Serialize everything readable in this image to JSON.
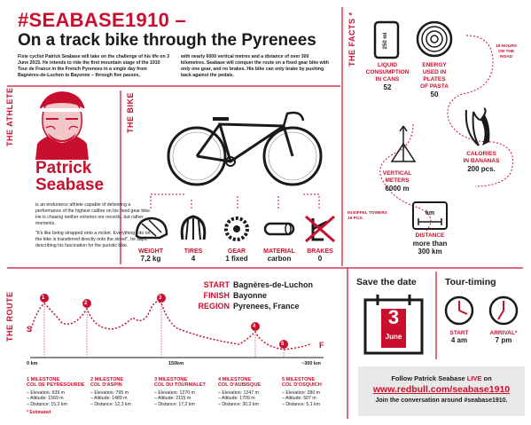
{
  "header": {
    "title": "#SEABASE1910 –",
    "subtitle": "On a track bike through the Pyrenees",
    "intro_left": "Fixie cyclist Patrick Seabase will take on the challenge of his life on 3 June 2015. He intends to ride the first mountain stage of the 1910 Tour de France in the French Pyrenees in a single day from Bagnères-de-Luchon to Bayonne – through five passes,",
    "intro_right": "with nearly 6000 vertical metres and a distance of over 300 kilometres. Seabase will conquer the route on a fixed gear bike with only one gear, and no brakes. His bike can only brake by pushing back against the pedals."
  },
  "sections": {
    "athlete": "THE ATHLETE",
    "bike": "THE BIKE",
    "facts": "THE FACTS *",
    "route": "THE ROUTE"
  },
  "athlete": {
    "first_name": "Patrick",
    "last_name": "Seabase",
    "bio1": "is an endurance athlete capable of delivering a performance of the highest calibre on his fixed gear bike. He is chasing neither victories nor records, but rather moments.",
    "bio2": "\"It's like being strapped onto a rocket. Everything I do on the bike is transferred directly onto the street\", he says, describing his fascination for the puristic bike."
  },
  "bike_specs": [
    {
      "label": "WEIGHT",
      "value": "7,2 kg",
      "icon": "helmet-icon"
    },
    {
      "label": "TIRES",
      "value": "4",
      "icon": "tire-icon"
    },
    {
      "label": "GEAR",
      "value": "1 fixed",
      "icon": "gear-icon"
    },
    {
      "label": "MATERIAL",
      "value": "carbon",
      "icon": "tube-icon"
    },
    {
      "label": "BRAKES",
      "value": "0",
      "icon": "no-brake-icon"
    }
  ],
  "facts": {
    "cans": {
      "label1": "LIQUID",
      "label2": "CONSUMPTION",
      "label3": "IN CANS",
      "value": "52",
      "can_text": "250 ml"
    },
    "pasta": {
      "label1": "ENERGY",
      "label2": "USED IN",
      "label3": "PLATES",
      "label4": "OF PASTA",
      "value": "50"
    },
    "hours": {
      "l1": "15 HOURS",
      "l2": "ON THE",
      "l3": "ROAD"
    },
    "bananas": {
      "label1": "CALORIES",
      "label2": "IN BANANAS",
      "value": "200 pcs."
    },
    "vertical": {
      "label1": "VERTICAL",
      "label2": "METERS",
      "value": "6000 m"
    },
    "eiffel": {
      "l1": "IN EIFFEL TOWERS",
      "l2": "19 PCS."
    },
    "distance": {
      "label": "DISTANCE",
      "value1": "more than",
      "value2": "300 km",
      "sign": "km"
    }
  },
  "route": {
    "start_label": "START",
    "start": "Bagnères-de-Luchon",
    "finish_label": "FINISH",
    "finish": "Bayonne",
    "region_label": "REGION",
    "region": "Pyrenees, France",
    "axis": [
      "0 km",
      "150km",
      "~300 km"
    ],
    "s": "S",
    "f": "F",
    "markers": [
      "1",
      "2",
      "3",
      "4",
      "5"
    ],
    "note": "* Estimated"
  },
  "milestones": [
    {
      "t1": "1 MILESTONE",
      "t2": "COL DE PEYRESOURDE",
      "alt": "– Altitude: 1569 m",
      "dist": "– Distance: 15,2 km",
      "elev": "– Elevation: 939 m"
    },
    {
      "t1": "2 MILESTONE",
      "t2": "COL D'ASPIN",
      "alt": "– Altitude: 1489 m",
      "dist": "– Distance: 12,3 km",
      "elev": "– Elevation: 795 m"
    },
    {
      "t1": "3 MILESTONE",
      "t2": "COL DU TOURMALET",
      "alt": "– Altitude: 2115 m",
      "dist": "– Distance: 17,2 km",
      "elev": "– Elevation: 1270 m"
    },
    {
      "t1": "4 MILESTONE",
      "t2": "COL D'AUBISQUE",
      "alt": "– Altitude: 1709 m",
      "dist": "– Distance: 30,2 km",
      "elev": "– Elevation: 1247 m"
    },
    {
      "t1": "5 MILESTONE",
      "t2": "COL D'OSQUICH",
      "alt": "– Altitude: 507 m",
      "dist": "– Distance: 5,1 km",
      "elev": "– Elevation: 280 m"
    }
  ],
  "save": {
    "title": "Save the date",
    "day": "3",
    "month": "June"
  },
  "timing": {
    "title": "Tour-timing",
    "start_label": "START",
    "start": "4 am",
    "arrival_label": "ARRIVAL*",
    "arrival": "7 pm"
  },
  "banner": {
    "l1_pre": "Follow Patrick Seabase ",
    "l1_live": "LIVE",
    "l1_post": " on",
    "url": "www.redbull.com/seabase1910",
    "l3": "Join the conversation around #seabase1910."
  }
}
